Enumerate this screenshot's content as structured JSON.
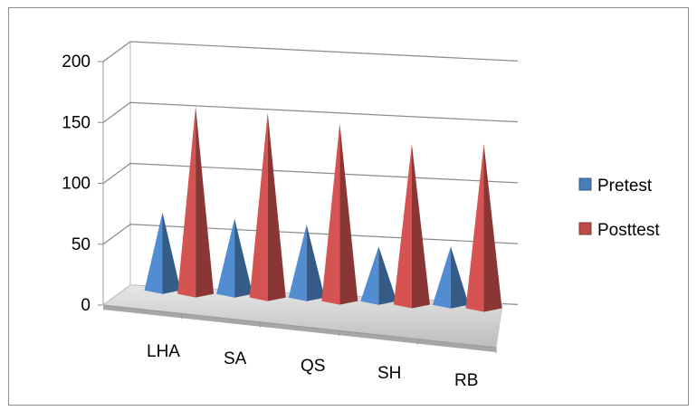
{
  "chart_data": {
    "type": "bar",
    "style": "3d-cone",
    "title": "",
    "xlabel": "",
    "ylabel": "",
    "ylim": [
      0,
      200
    ],
    "yticks": [
      0,
      50,
      100,
      150,
      200
    ],
    "categories": [
      "LHA",
      "SA",
      "QS",
      "SH",
      "RB"
    ],
    "series": [
      {
        "name": "Pretest",
        "color": "#4a7ebb",
        "values": [
          64,
          62,
          60,
          45,
          48
        ]
      },
      {
        "name": "Posttest",
        "color": "#be4b48",
        "values": [
          154,
          152,
          146,
          132,
          135
        ]
      }
    ],
    "grid": true,
    "legend": "right"
  }
}
